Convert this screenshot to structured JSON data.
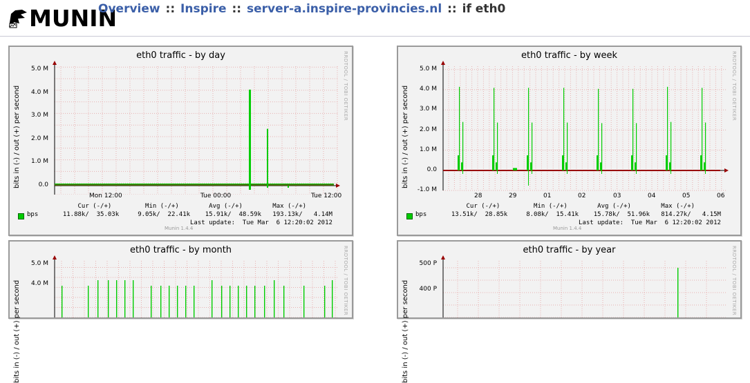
{
  "header": {
    "logo_text": "MUNIN",
    "breadcrumb": [
      {
        "label": "Overview",
        "link": true
      },
      {
        "label": "Inspire",
        "link": true
      },
      {
        "label": "server-a.inspire-provincies.nl",
        "link": true
      }
    ],
    "separator": "::",
    "current": "if eth0"
  },
  "graphs": {
    "day": {
      "title": "eth0 traffic - by day",
      "ylabel": "bits in (-) / out (+) per second",
      "side_label": "RRDTOOL / TOBI OETIKER",
      "legend_head": "      Cur (-/+)         Min (-/+)        Avg (-/+)        Max (-/+)",
      "series_name": "bps",
      "legend_values": "  11.88k/  35.03k     9.05k/  22.41k    15.91k/  48.59k   193.13k/   4.14M",
      "last_update": "Last update:  Tue Mar  6 12:20:02 2012",
      "version": "Munin 1.4.4"
    },
    "week": {
      "title": "eth0 traffic - by week",
      "ylabel": "bits in (-) / out (+) per second",
      "side_label": "RRDTOOL / TOBI OETIKER",
      "legend_head": "      Cur (-/+)         Min (-/+)        Avg (-/+)        Max (-/+)",
      "series_name": "bps",
      "legend_values": "  13.51k/  28.85k     8.08k/  15.41k    15.78k/  51.96k   814.27k/   4.15M",
      "last_update": "Last update:  Tue Mar  6 12:20:02 2012",
      "version": "Munin 1.4.4"
    },
    "month": {
      "title": "eth0 traffic - by month",
      "ylabel": "bits in (-) / out (+) per second",
      "side_label": "RRDTOOL / TOBI OETIKER"
    },
    "year": {
      "title": "eth0 traffic - by year",
      "ylabel": "bits in (-) / out (+) per second",
      "side_label": "RRDTOOL / TOBI OETIKER"
    }
  },
  "colors": {
    "series_in": "#00cc00",
    "series_out": "#990000",
    "grid": "#e8b0b0",
    "link": "#3b5fa8"
  },
  "chart_data": [
    {
      "type": "line",
      "title": "eth0 traffic - by day",
      "ylabel": "bits in (-) / out (+) per second",
      "yticks": [
        "0.0",
        "1.0 M",
        "2.0 M",
        "3.0 M",
        "4.0 M",
        "5.0 M"
      ],
      "ylim": [
        0,
        5000000
      ],
      "xticks": [
        "Mon 12:00",
        "Tue 00:00",
        "Tue 12:00"
      ],
      "series": [
        {
          "name": "bps",
          "x": [
            0.77,
            0.83,
            0.93
          ],
          "values": [
            4140000,
            2450000,
            -50000
          ]
        }
      ]
    },
    {
      "type": "line",
      "title": "eth0 traffic - by week",
      "ylabel": "bits in (-) / out (+) per second",
      "yticks": [
        "-1.0 M",
        "0.0",
        "1.0 M",
        "2.0 M",
        "3.0 M",
        "4.0 M",
        "5.0 M"
      ],
      "ylim": [
        -1000000,
        5000000
      ],
      "xticks": [
        "28",
        "29",
        "01",
        "02",
        "03",
        "04",
        "05",
        "06"
      ],
      "series": [
        {
          "name": "bps",
          "values": [
            4150000,
            4100000,
            4100000,
            4100000,
            4050000,
            4050000,
            4150000,
            4100000
          ]
        }
      ]
    },
    {
      "type": "line",
      "title": "eth0 traffic - by month",
      "yticks": [
        "4.0 M",
        "5.0 M"
      ],
      "ylim": [
        0,
        5000000
      ]
    },
    {
      "type": "line",
      "title": "eth0 traffic - by year",
      "yticks": [
        "400 P",
        "500 P"
      ]
    }
  ]
}
